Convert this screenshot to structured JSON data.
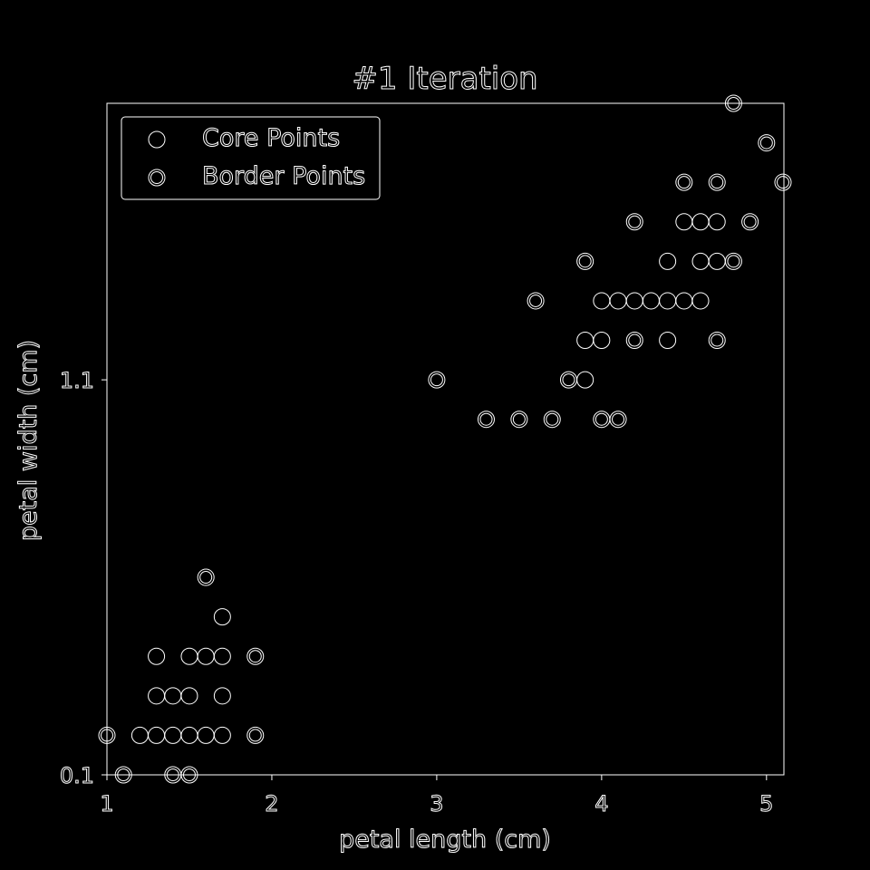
{
  "chart_data": {
    "type": "scatter",
    "title": "#1 Iteration",
    "xlabel": "petal length (cm)",
    "ylabel": "petal width (cm)",
    "xlim": [
      1,
      5.1
    ],
    "ylim": [
      0.1,
      1.8
    ],
    "xticks": [
      {
        "v": 1,
        "label": "1"
      },
      {
        "v": 2,
        "label": "2"
      },
      {
        "v": 3,
        "label": "3"
      },
      {
        "v": 4,
        "label": "4"
      },
      {
        "v": 5,
        "label": "5"
      }
    ],
    "yticks": [
      {
        "v": 0.1,
        "label": "0.1"
      },
      {
        "v": 1.1,
        "label": "1.1"
      }
    ],
    "legend": {
      "position": "upper-left",
      "entries": [
        "Core Points",
        "Border Points"
      ]
    },
    "series": [
      {
        "name": "Core Points",
        "marker": "circle",
        "points": [
          [
            1.2,
            0.2
          ],
          [
            1.3,
            0.2
          ],
          [
            1.4,
            0.2
          ],
          [
            1.5,
            0.2
          ],
          [
            1.6,
            0.2
          ],
          [
            1.7,
            0.2
          ],
          [
            1.3,
            0.3
          ],
          [
            1.4,
            0.3
          ],
          [
            1.5,
            0.3
          ],
          [
            1.7,
            0.3
          ],
          [
            1.3,
            0.4
          ],
          [
            1.5,
            0.4
          ],
          [
            1.6,
            0.4
          ],
          [
            1.7,
            0.4
          ],
          [
            1.7,
            0.5
          ],
          [
            3.9,
            1.1
          ],
          [
            3.9,
            1.2
          ],
          [
            4.0,
            1.2
          ],
          [
            4.4,
            1.2
          ],
          [
            4.0,
            1.3
          ],
          [
            4.1,
            1.3
          ],
          [
            4.2,
            1.3
          ],
          [
            4.3,
            1.3
          ],
          [
            4.4,
            1.3
          ],
          [
            4.5,
            1.3
          ],
          [
            4.6,
            1.3
          ],
          [
            4.4,
            1.4
          ],
          [
            4.6,
            1.4
          ],
          [
            4.7,
            1.4
          ],
          [
            4.5,
            1.5
          ],
          [
            4.6,
            1.5
          ],
          [
            4.7,
            1.5
          ]
        ]
      },
      {
        "name": "Border Points",
        "marker": "double-circle",
        "points": [
          [
            1.0,
            0.2
          ],
          [
            1.1,
            0.1
          ],
          [
            1.4,
            0.1
          ],
          [
            1.5,
            0.1
          ],
          [
            1.9,
            0.2
          ],
          [
            1.9,
            0.4
          ],
          [
            1.6,
            0.6
          ],
          [
            3.0,
            1.1
          ],
          [
            3.3,
            1.0
          ],
          [
            3.5,
            1.0
          ],
          [
            3.7,
            1.0
          ],
          [
            4.0,
            1.0
          ],
          [
            4.1,
            1.0
          ],
          [
            3.8,
            1.1
          ],
          [
            3.6,
            1.3
          ],
          [
            3.9,
            1.4
          ],
          [
            4.2,
            1.2
          ],
          [
            4.7,
            1.2
          ],
          [
            4.8,
            1.4
          ],
          [
            4.2,
            1.5
          ],
          [
            4.9,
            1.5
          ],
          [
            4.5,
            1.6
          ],
          [
            4.7,
            1.6
          ],
          [
            5.1,
            1.6
          ],
          [
            5.0,
            1.7
          ],
          [
            4.8,
            1.8
          ]
        ]
      }
    ]
  }
}
